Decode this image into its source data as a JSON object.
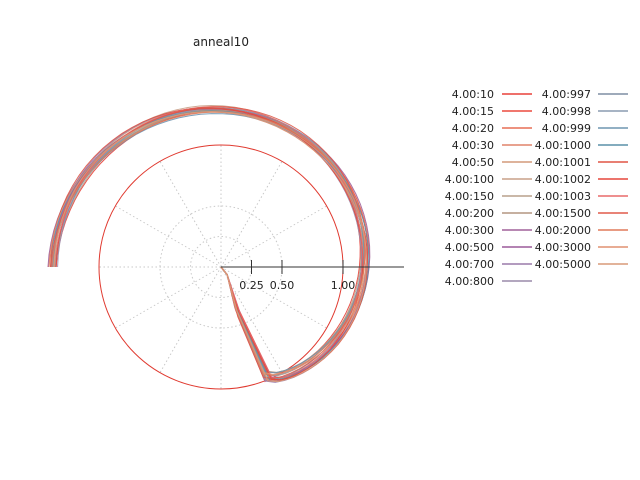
{
  "chart_data": {
    "type": "line",
    "projection": "polar",
    "title": "anneal10",
    "radial_axis": {
      "ticks": [
        0.25,
        0.5,
        1.0
      ],
      "tick_labels": [
        "0.25",
        "0.50",
        "1.00"
      ],
      "max": 1.5
    },
    "reference_circle_radius": 1.0,
    "grid": true,
    "legend": {
      "placement": "right",
      "columns": 2
    },
    "series": [
      {
        "name": "4.00:10",
        "color": "#e8413a"
      },
      {
        "name": "4.00:15",
        "color": "#ec4a3f"
      },
      {
        "name": "4.00:20",
        "color": "#e76f55"
      },
      {
        "name": "4.00:30",
        "color": "#e0836a"
      },
      {
        "name": "4.00:50",
        "color": "#d49a7a"
      },
      {
        "name": "4.00:100",
        "color": "#c9a088"
      },
      {
        "name": "4.00:150",
        "color": "#b9a08c"
      },
      {
        "name": "4.00:200",
        "color": "#b39680"
      },
      {
        "name": "4.00:300",
        "color": "#a0609a"
      },
      {
        "name": "4.00:500",
        "color": "#9c5a9a"
      },
      {
        "name": "4.00:700",
        "color": "#9a7aaa"
      },
      {
        "name": "4.00:800",
        "color": "#9a8aaa"
      },
      {
        "name": "4.00:997",
        "color": "#7f8ea3"
      },
      {
        "name": "4.00:998",
        "color": "#8a9bb0"
      },
      {
        "name": "4.00:999",
        "color": "#6f95b0"
      },
      {
        "name": "4.00:1000",
        "color": "#5a90a8"
      },
      {
        "name": "4.00:1001",
        "color": "#e05545"
      },
      {
        "name": "4.00:1002",
        "color": "#e5463c"
      },
      {
        "name": "4.00:1003",
        "color": "#e86a6a"
      },
      {
        "name": "4.00:1500",
        "color": "#e05a4a"
      },
      {
        "name": "4.00:2000",
        "color": "#e07a5a"
      },
      {
        "name": "4.00:3000",
        "color": "#e09070"
      },
      {
        "name": "4.00:5000",
        "color": "#d89a78"
      }
    ]
  }
}
